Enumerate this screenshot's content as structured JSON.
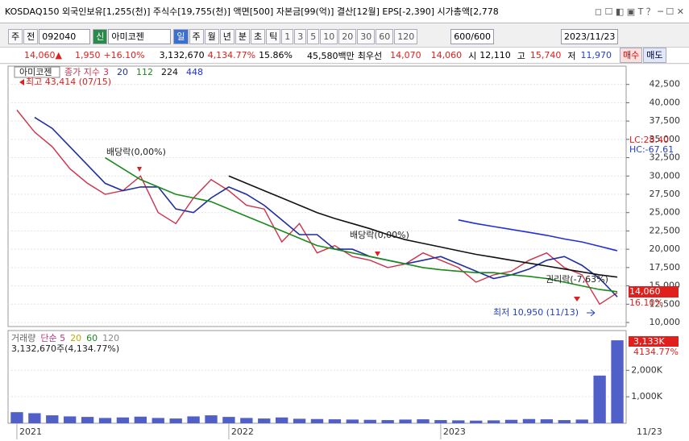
{
  "title_bar": {
    "text": "KOSDAQ150 외국인보유[1,255(천)] 주식수[19,755(천)] 액면[500] 자본금[99(억)] 결산[12월] EPS[-2,390] 시가총액[2,778"
  },
  "toolbar": {
    "type_select": "주",
    "prev": "전",
    "code": "092040",
    "badge": "신",
    "name": "아미코젠",
    "periods": [
      "일",
      "주",
      "월",
      "년",
      "분",
      "초",
      "틱"
    ],
    "intervals": [
      "1",
      "3",
      "5",
      "10",
      "20",
      "30",
      "60",
      "120"
    ],
    "count": "600/600",
    "date": "2023/11/23"
  },
  "quote": {
    "price": "14,060",
    "arrow": "▲",
    "change": "1,950",
    "change_pct": "+16.10%",
    "volume": "3,132,670",
    "volume_pct": "4,134.77%",
    "turnover": "15.86%",
    "amount": "45,580백만",
    "best_label": "최우선",
    "ask": "14,070",
    "bid": "14,060",
    "open_label": "시",
    "open": "12,110",
    "high_label": "고",
    "high": "15,740",
    "low_label": "저",
    "low": "11,970",
    "buy": "매수",
    "sell": "매도"
  },
  "chart_data": [
    {
      "type": "line",
      "title": "아미코젠",
      "legend_prefix": "종가 지수",
      "categories": [
        "2021",
        null,
        null,
        null,
        null,
        null,
        null,
        null,
        null,
        null,
        null,
        null,
        "2022",
        null,
        null,
        null,
        null,
        null,
        null,
        null,
        null,
        null,
        null,
        null,
        "2023",
        null,
        null,
        null,
        null,
        null,
        null,
        null,
        null,
        null,
        null
      ],
      "series": [
        {
          "name": "3",
          "color": "#d0304a",
          "values": [
            39000,
            36000,
            34000,
            31000,
            29000,
            27500,
            28000,
            30000,
            25000,
            23500,
            27000,
            29500,
            28000,
            26000,
            25500,
            21000,
            23500,
            19500,
            20500,
            19000,
            18500,
            17500,
            18000,
            19500,
            18500,
            17500,
            15500,
            16500,
            17000,
            18500,
            19500,
            17500,
            16500,
            12500,
            14060
          ]
        },
        {
          "name": "20",
          "color": "#1f2f9f",
          "values": [
            null,
            38000,
            36500,
            34000,
            31500,
            29000,
            28000,
            28500,
            28500,
            25500,
            25000,
            27000,
            28500,
            27500,
            26000,
            24000,
            22000,
            22000,
            20000,
            20000,
            19000,
            18500,
            18000,
            18500,
            19000,
            18000,
            17000,
            16000,
            16500,
            17300,
            18500,
            19000,
            17800,
            16000,
            13500
          ]
        },
        {
          "name": "112",
          "color": "#1a8a1a",
          "values": [
            null,
            null,
            null,
            null,
            null,
            32500,
            31000,
            29500,
            28500,
            27500,
            27000,
            26500,
            25500,
            24500,
            23500,
            22500,
            21500,
            20500,
            20000,
            19500,
            19000,
            18500,
            18000,
            17500,
            17200,
            17000,
            16800,
            16800,
            16500,
            16300,
            16000,
            15500,
            15000,
            14500,
            14200
          ]
        },
        {
          "name": "224",
          "color": "#111111",
          "values": [
            null,
            null,
            null,
            null,
            null,
            null,
            null,
            null,
            null,
            null,
            null,
            null,
            30000,
            29000,
            28000,
            27000,
            26000,
            25000,
            24200,
            23500,
            22800,
            22000,
            21300,
            20800,
            20300,
            19800,
            19300,
            18900,
            18500,
            18100,
            17700,
            17300,
            16900,
            16500,
            16200
          ]
        },
        {
          "name": "448",
          "color": "#1f2fdf",
          "values": [
            null,
            null,
            null,
            null,
            null,
            null,
            null,
            null,
            null,
            null,
            null,
            null,
            null,
            null,
            null,
            null,
            null,
            null,
            null,
            null,
            null,
            null,
            null,
            null,
            null,
            24000,
            23500,
            23100,
            22700,
            22300,
            21900,
            21400,
            21000,
            20400,
            19800
          ]
        }
      ],
      "ylim": [
        9450,
        45000
      ],
      "yticks": [
        {
          "value": 10000,
          "label": "10,000"
        },
        {
          "value": 12500,
          "label": "12,500"
        },
        {
          "value": 15000,
          "label": "15,000"
        },
        {
          "value": 17500,
          "label": "17,500"
        },
        {
          "value": 20000,
          "label": "20,000"
        },
        {
          "value": 22500,
          "label": "22,500"
        },
        {
          "value": 25000,
          "label": "25,000"
        },
        {
          "value": 27500,
          "label": "27,500"
        },
        {
          "value": 30000,
          "label": "30,000"
        },
        {
          "value": 32500,
          "label": "32,500"
        },
        {
          "value": 35000,
          "label": "35,000"
        },
        {
          "value": 37500,
          "label": "37,500"
        },
        {
          "value": 40000,
          "label": "40,000"
        },
        {
          "value": 42500,
          "label": "42,500"
        }
      ],
      "annotations": [
        "최고 43,414 (07/15)",
        "배당락(0,00%)",
        "배당락(0,00%)",
        "권리락(-7,63%)",
        "최저 10,950 (11/13)"
      ],
      "tags": [
        "LC:28.40",
        "HC:-67.61",
        "14,060",
        "16.10%"
      ],
      "x_end_label": "11/23"
    },
    {
      "type": "bar",
      "title": "거래량",
      "ma_labels": [
        "단순 5",
        "20",
        "60",
        "120"
      ],
      "summary": "3,132,670주(4,134.77%)",
      "color": "#5060c8",
      "values": [
        420000,
        380000,
        300000,
        260000,
        240000,
        200000,
        220000,
        250000,
        200000,
        180000,
        260000,
        300000,
        240000,
        200000,
        180000,
        220000,
        170000,
        160000,
        150000,
        140000,
        130000,
        120000,
        140000,
        150000,
        120000,
        110000,
        100000,
        110000,
        130000,
        160000,
        150000,
        120000,
        140000,
        1800000,
        3132670
      ],
      "ylim": [
        0,
        3440000
      ],
      "yticks": [
        {
          "value": 1000000,
          "label": "1,000K"
        },
        {
          "value": 2000000,
          "label": "2,000K"
        }
      ],
      "tags": [
        "3,133K",
        "4134.77%"
      ]
    }
  ]
}
